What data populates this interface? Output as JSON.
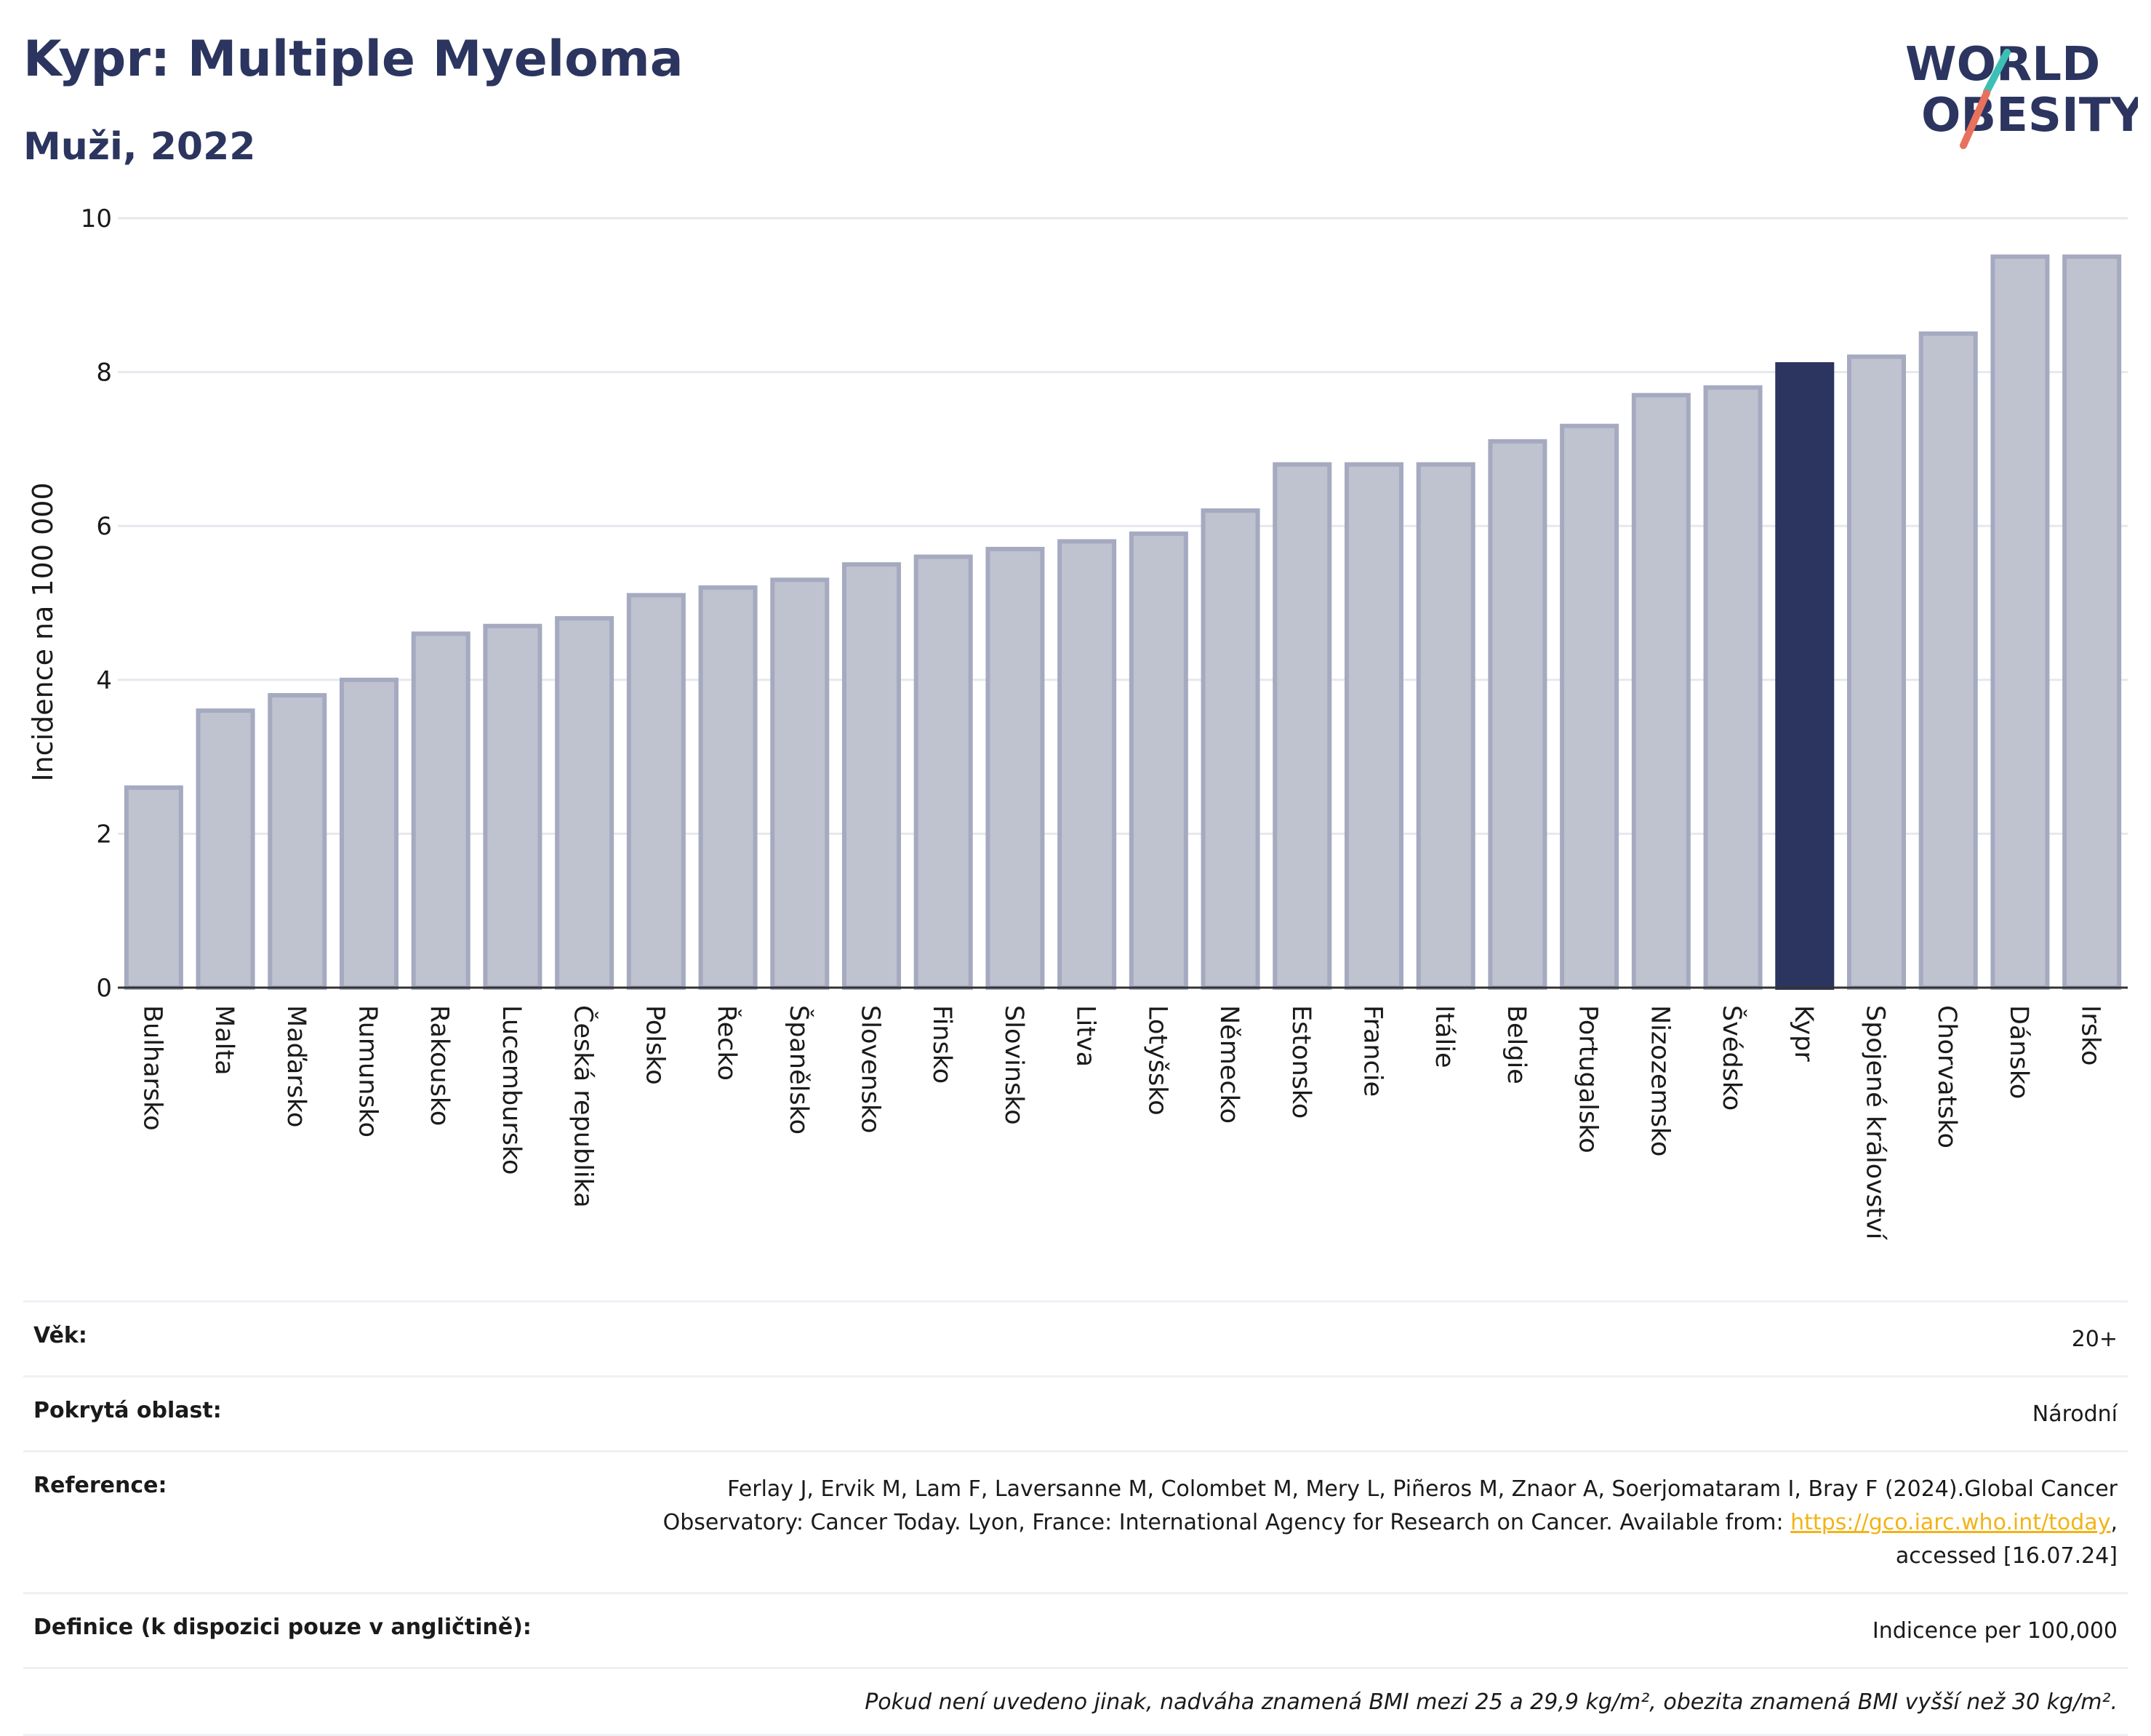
{
  "header": {
    "title": "Kypr: Multiple Myeloma",
    "subtitle": "Muži, 2022"
  },
  "logo": {
    "line1": "WORLD",
    "line2": "OBESITY",
    "colors": {
      "text": "#2b355f",
      "slash_teal": "#3cbfb5",
      "slash_coral": "#e8715e"
    }
  },
  "chart_data": {
    "type": "bar",
    "ylabel": "Incidence na 100 000",
    "ylim": [
      0,
      10
    ],
    "yticks": [
      "0",
      "2",
      "4",
      "6",
      "8",
      "10"
    ],
    "grid": true,
    "highlight": "Kypr",
    "colors": {
      "bar": "#bfc2cf",
      "bar_border": "#a5aac0",
      "highlight": "#2b355f",
      "grid": "#e6e8ee",
      "axis": "#333333"
    },
    "categories": [
      "Bulharsko",
      "Malta",
      "Maďarsko",
      "Rumunsko",
      "Rakousko",
      "Lucembursko",
      "Česká republika",
      "Polsko",
      "Řecko",
      "Španělsko",
      "Slovensko",
      "Finsko",
      "Slovinsko",
      "Litva",
      "Lotyšsko",
      "Německo",
      "Estonsko",
      "Francie",
      "Itálie",
      "Belgie",
      "Portugalsko",
      "Nizozemsko",
      "Švédsko",
      "Kypr",
      "Spojené království",
      "Chorvatsko",
      "Dánsko",
      "Irsko"
    ],
    "values": [
      2.6,
      3.6,
      3.8,
      4.0,
      4.6,
      4.7,
      4.8,
      5.1,
      5.2,
      5.3,
      5.5,
      5.6,
      5.7,
      5.8,
      5.9,
      6.2,
      6.8,
      6.8,
      6.8,
      7.1,
      7.3,
      7.7,
      7.8,
      8.1,
      8.2,
      8.5,
      9.5,
      9.5
    ]
  },
  "info": {
    "age_label": "Věk:",
    "age_value": "20+",
    "area_label": "Pokrytá oblast:",
    "area_value": "Národní",
    "ref_label": "Reference:",
    "ref_text_1": "Ferlay J, Ervik M, Lam F, Laversanne M, Colombet M, Mery L, Piñeros M, Znaor A, Soerjomataram I, Bray F (2024).Global Cancer",
    "ref_text_2": "Observatory: Cancer Today. Lyon, France: International Agency for Research on Cancer. Available from: ",
    "ref_link": "https://gco.iarc.who.int/today",
    "ref_text_3": ",",
    "ref_text_4": "accessed [16.07.24]",
    "def_label": "Definice (k dispozici pouze v angličtině):",
    "def_value": "Indicence per 100,000",
    "note": "Pokud není uvedeno jinak, nadváha znamená BMI mezi 25 a 29,9 kg/m², obezita znamená BMI vyšší než 30 kg/m²."
  }
}
